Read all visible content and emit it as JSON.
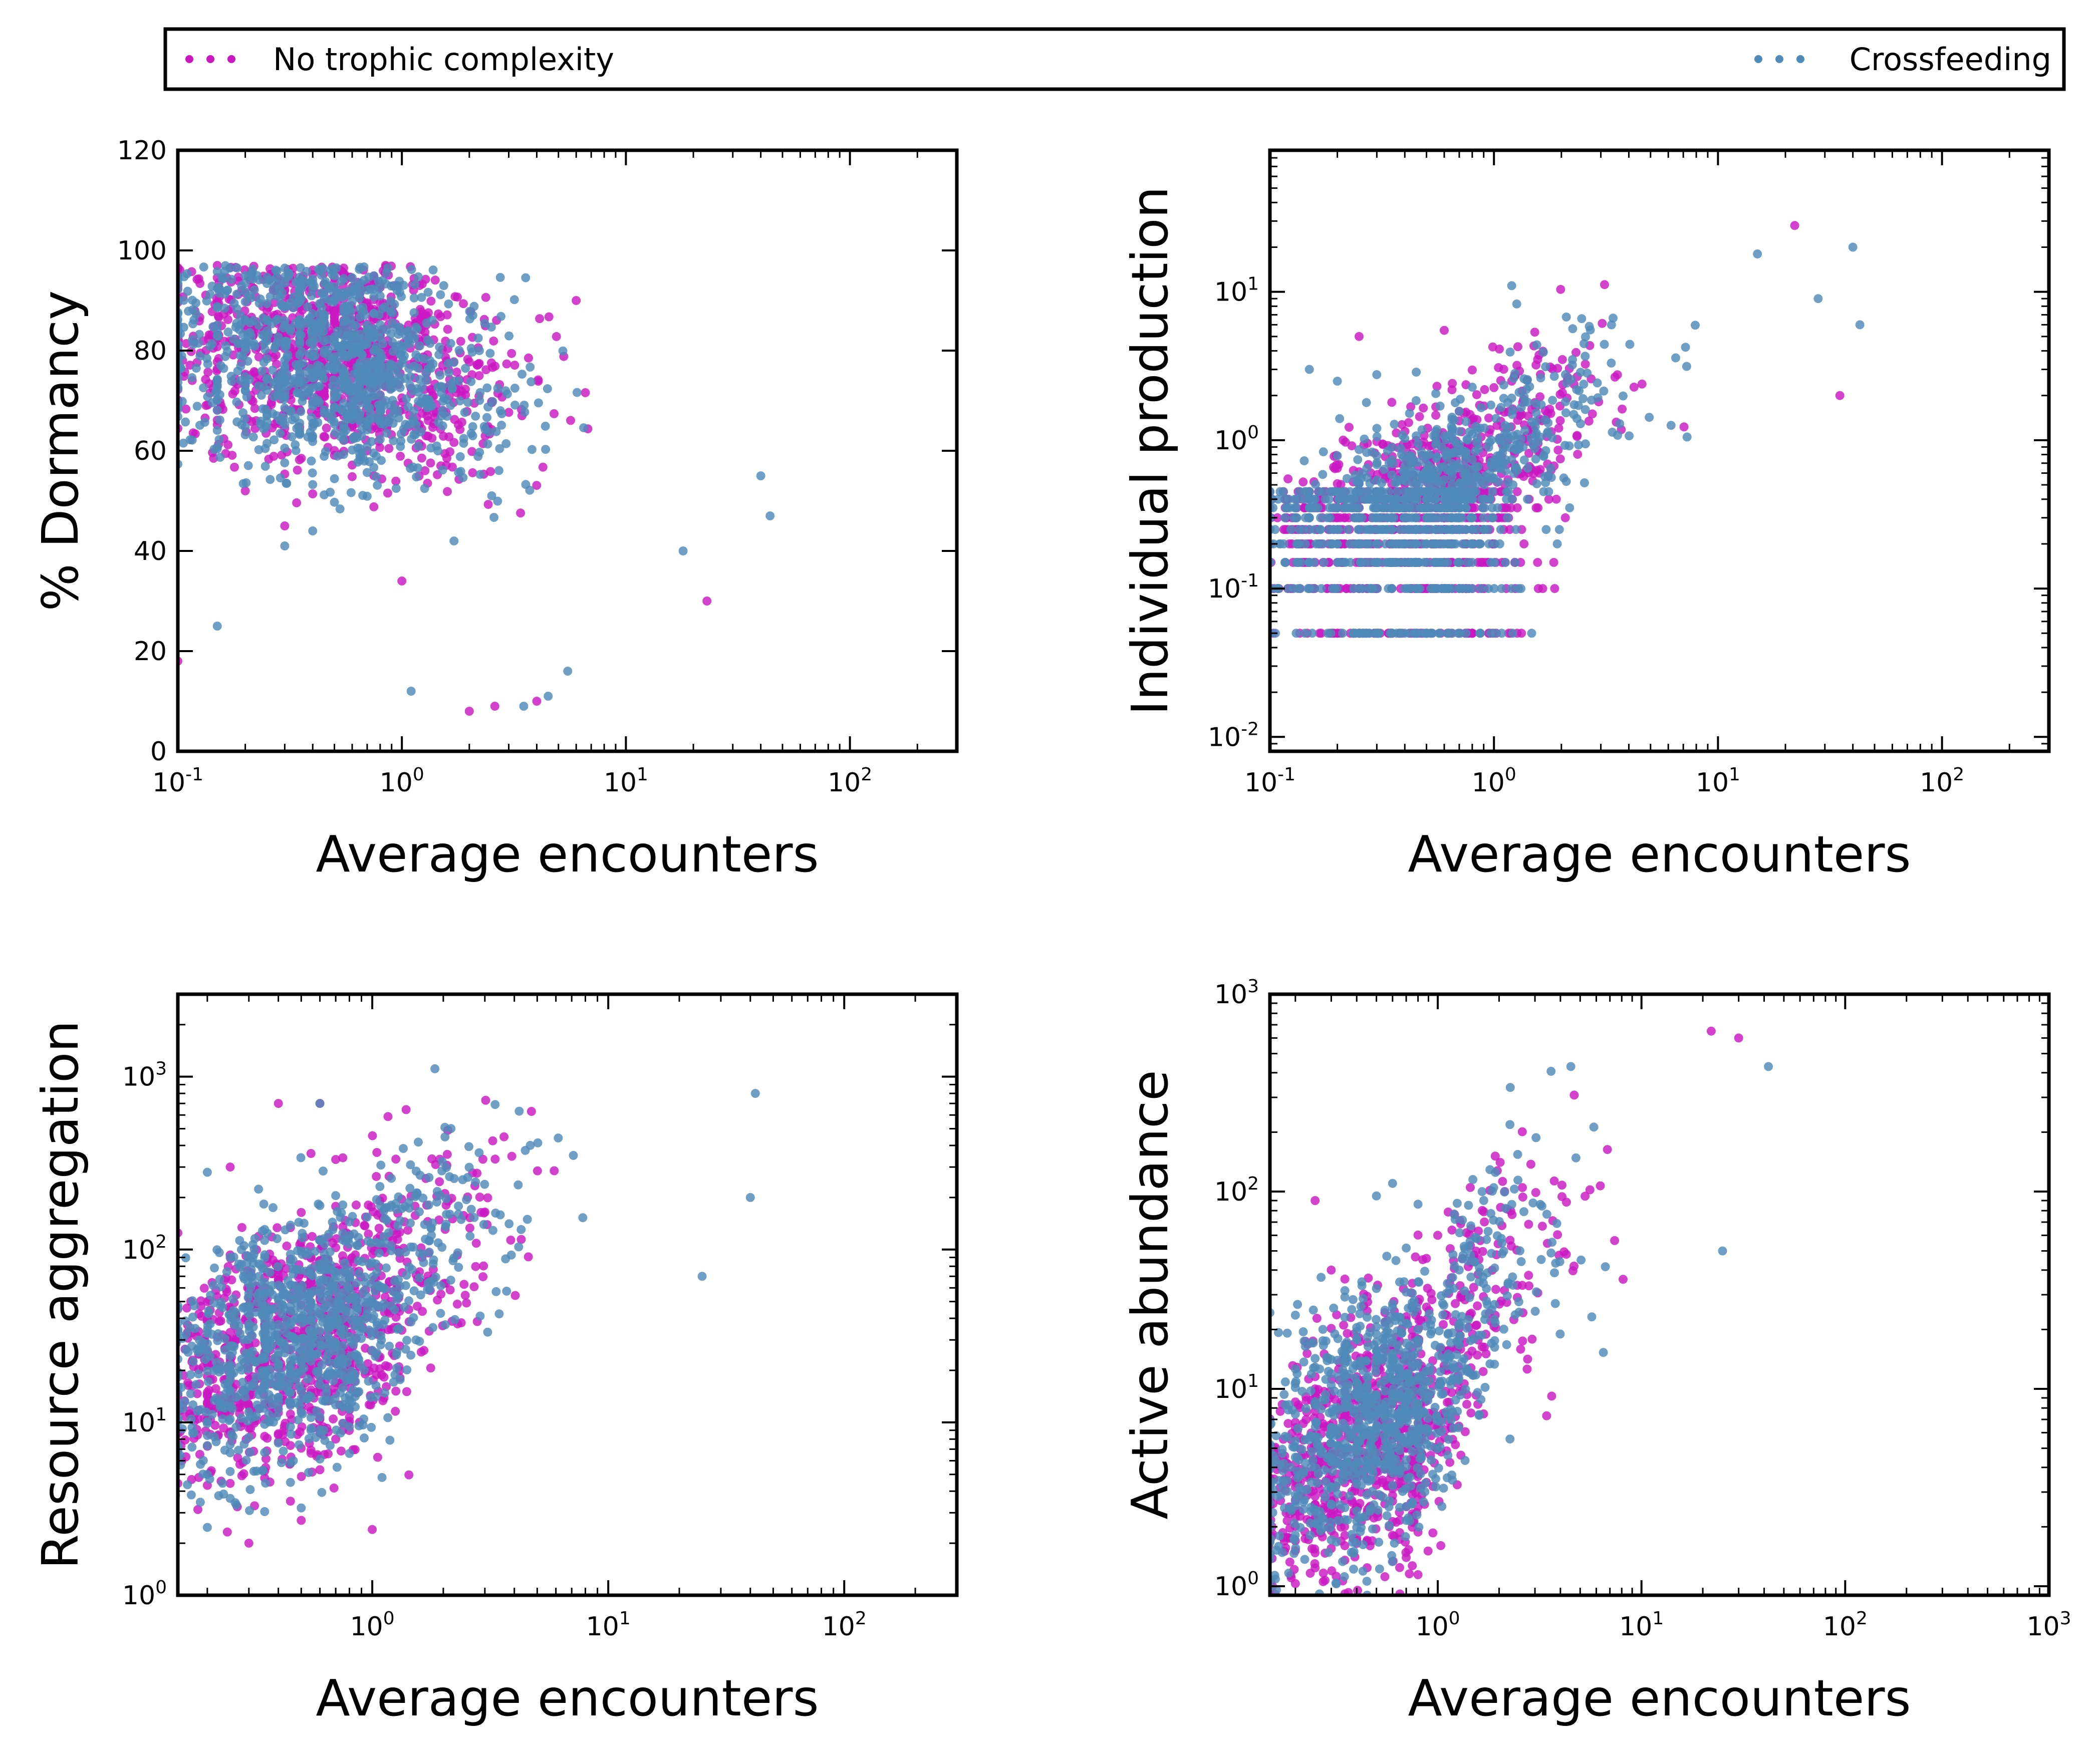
{
  "legend": {
    "placement": "top",
    "entries": [
      {
        "label": "No trophic complexity",
        "color": "#c918c2"
      },
      {
        "label": "Crossfeeding",
        "color": "#4f8ab8"
      }
    ]
  },
  "chart_data": [
    {
      "type": "scatter",
      "id": "dormancy",
      "xlabel": "Average encounters",
      "ylabel": "% Dormancy",
      "xscale": "log",
      "yscale": "linear",
      "xlim": [
        0.1,
        300
      ],
      "ylim": [
        0,
        120
      ],
      "xticks": [
        "10^-1",
        "10^0",
        "10^1",
        "10^2"
      ],
      "yticks": [
        "0",
        "20",
        "40",
        "60",
        "80",
        "100",
        "120"
      ],
      "series": [
        {
          "name": "No trophic complexity",
          "color": "#c918c2",
          "trend": {
            "x": [
              0.1,
              1,
              10,
              40
            ],
            "y": [
              82,
              78,
              62,
              48
            ],
            "spread": 14
          },
          "points": [
            [
              0.15,
              97
            ],
            [
              0.2,
              52
            ],
            [
              0.1,
              18
            ],
            [
              2.0,
              8
            ],
            [
              2.6,
              9
            ],
            [
              4.0,
              10
            ],
            [
              6,
              90
            ],
            [
              1.2,
              93
            ],
            [
              23,
              30
            ],
            [
              1.0,
              34
            ],
            [
              0.3,
              45
            ]
          ]
        },
        {
          "name": "Crossfeeding",
          "color": "#4f8ab8",
          "trend": {
            "x": [
              0.1,
              1,
              10,
              40
            ],
            "y": [
              82,
              76,
              62,
              47
            ],
            "spread": 15
          },
          "points": [
            [
              0.15,
              25
            ],
            [
              1.1,
              12
            ],
            [
              3.5,
              9
            ],
            [
              4.5,
              11
            ],
            [
              0.3,
              41
            ],
            [
              0.4,
              44
            ],
            [
              40,
              55
            ],
            [
              44,
              47
            ],
            [
              5.5,
              16
            ],
            [
              18,
              40
            ]
          ]
        }
      ]
    },
    {
      "type": "scatter",
      "id": "production",
      "xlabel": "Average encounters",
      "ylabel": "Individual production",
      "xscale": "log",
      "yscale": "log",
      "xlim": [
        0.1,
        300
      ],
      "ylim": [
        0.008,
        90
      ],
      "xticks": [
        "10^-1",
        "10^0",
        "10^1",
        "10^2"
      ],
      "yticks": [
        "10^-2",
        "10^-1",
        "10^0",
        "10^1"
      ],
      "series": [
        {
          "name": "No trophic complexity",
          "color": "#c918c2",
          "trend": {
            "x": [
              0.1,
              1,
              10,
              40
            ],
            "y": [
              0.1,
              0.45,
              4,
              10
            ],
            "spread": 0.45
          },
          "levels": [
            0.05,
            0.1,
            0.15,
            0.2,
            0.25,
            0.3,
            0.35,
            0.4,
            0.45
          ],
          "points": [
            [
              0.25,
              5
            ],
            [
              0.35,
              1.8
            ],
            [
              22,
              28
            ],
            [
              35,
              2
            ],
            [
              1.2,
              2.5
            ],
            [
              0.6,
              5.5
            ]
          ]
        },
        {
          "name": "Crossfeeding",
          "color": "#4f8ab8",
          "trend": {
            "x": [
              0.1,
              1,
              10,
              40
            ],
            "y": [
              0.1,
              0.45,
              3.5,
              10
            ],
            "spread": 0.45
          },
          "levels": [
            0.05,
            0.1,
            0.15,
            0.2,
            0.25,
            0.3,
            0.35,
            0.4,
            0.45
          ],
          "points": [
            [
              0.15,
              3
            ],
            [
              1.2,
              11
            ],
            [
              0.2,
              2.5
            ],
            [
              40,
              20
            ],
            [
              43,
              6
            ],
            [
              28,
              9
            ],
            [
              15,
              18
            ]
          ]
        }
      ]
    },
    {
      "type": "scatter",
      "id": "aggregation",
      "xlabel": "Average encounters",
      "ylabel": "Resource aggregation",
      "xscale": "log",
      "yscale": "log",
      "xlim": [
        0.15,
        300
      ],
      "ylim": [
        1,
        3000
      ],
      "xticks": [
        "10^0",
        "10^1",
        "10^2"
      ],
      "yticks": [
        "10^0",
        "10^1",
        "10^2",
        "10^3"
      ],
      "series": [
        {
          "name": "No trophic complexity",
          "color": "#c918c2",
          "trend": {
            "x": [
              0.15,
              1,
              10,
              40
            ],
            "y": [
              14,
              40,
              300,
              500
            ],
            "spread": 0.5
          },
          "points": [
            [
              0.3,
              2
            ],
            [
              1.0,
              2.4
            ],
            [
              0.45,
              3.5
            ],
            [
              0.4,
              700
            ],
            [
              0.6,
              700
            ],
            [
              0.25,
              300
            ],
            [
              0.2,
              50
            ]
          ]
        },
        {
          "name": "Crossfeeding",
          "color": "#4f8ab8",
          "trend": {
            "x": [
              0.15,
              1,
              10,
              40
            ],
            "y": [
              14,
              40,
              300,
              550
            ],
            "spread": 0.5
          },
          "points": [
            [
              0.5,
              3.2
            ],
            [
              0.6,
              700
            ],
            [
              0.2,
              280
            ],
            [
              42,
              800
            ],
            [
              40,
              200
            ],
            [
              25,
              70
            ],
            [
              0.2,
              5
            ],
            [
              1.1,
              4.8
            ]
          ]
        }
      ]
    },
    {
      "type": "scatter",
      "id": "abundance",
      "xlabel": "Average encounters",
      "ylabel": "Active abundance",
      "xscale": "log",
      "yscale": "log",
      "xlim": [
        0.15,
        1000
      ],
      "ylim": [
        0.9,
        1000
      ],
      "xticks": [
        "10^0",
        "10^1",
        "10^2",
        "10^3"
      ],
      "yticks": [
        "10^0",
        "10^1",
        "10^2",
        "10^3"
      ],
      "series": [
        {
          "name": "No trophic complexity",
          "color": "#c918c2",
          "trend": {
            "x": [
              0.15,
              1,
              10,
              40
            ],
            "y": [
              2.5,
              8,
              100,
              300
            ],
            "spread": 0.45
          },
          "points": [
            [
              0.25,
              90
            ],
            [
              22,
              650
            ],
            [
              30,
              600
            ],
            [
              0.3,
              40
            ],
            [
              1.0,
              60
            ]
          ]
        },
        {
          "name": "Crossfeeding",
          "color": "#4f8ab8",
          "trend": {
            "x": [
              0.15,
              1,
              10,
              40
            ],
            "y": [
              3,
              10,
              110,
              300
            ],
            "spread": 0.45
          },
          "points": [
            [
              0.15,
              1.0
            ],
            [
              0.45,
              0.9
            ],
            [
              4.5,
              430
            ],
            [
              0.6,
              110
            ],
            [
              42,
              430
            ],
            [
              25,
              50
            ],
            [
              0.5,
              95
            ]
          ]
        }
      ]
    }
  ]
}
